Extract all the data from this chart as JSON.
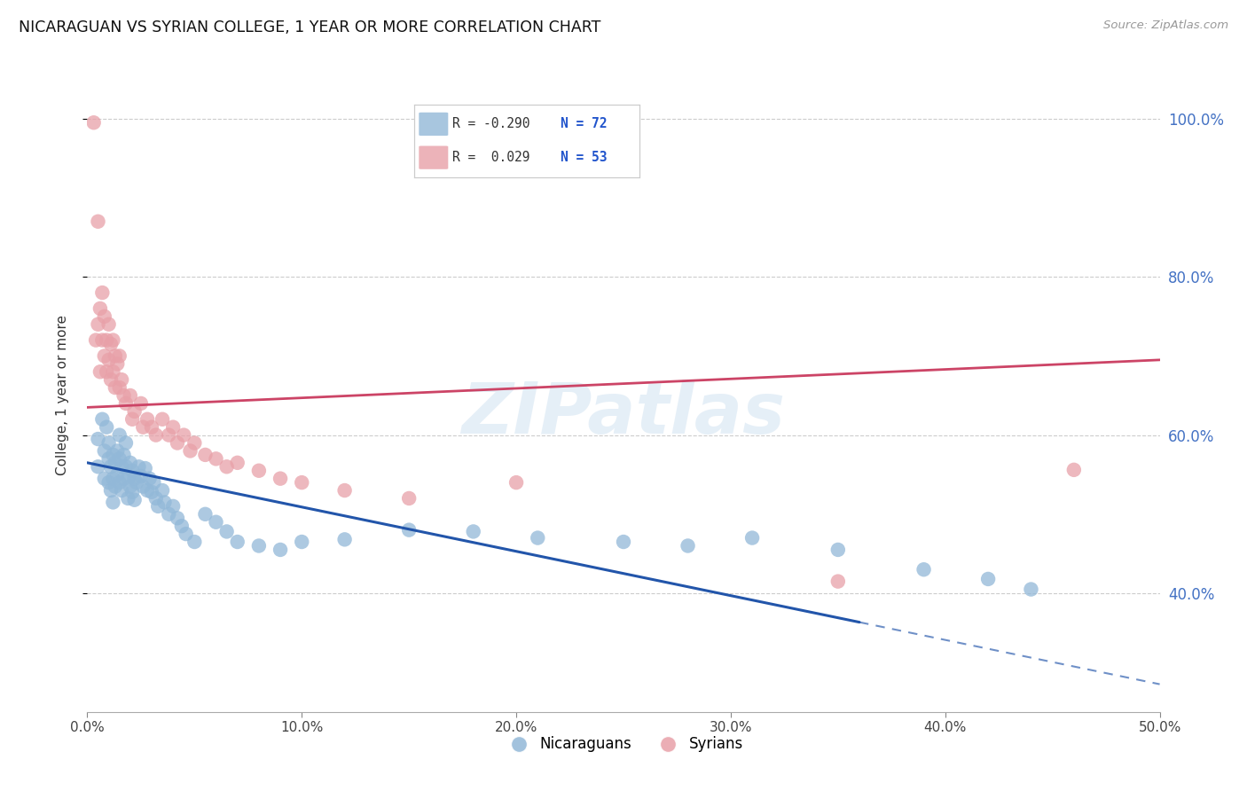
{
  "title": "NICARAGUAN VS SYRIAN COLLEGE, 1 YEAR OR MORE CORRELATION CHART",
  "source": "Source: ZipAtlas.com",
  "ylabel_left": "College, 1 year or more",
  "xlim": [
    0.0,
    0.5
  ],
  "ylim": [
    0.25,
    1.05
  ],
  "yticks_right": [
    0.4,
    0.6,
    0.8,
    1.0
  ],
  "ytick_labels_right": [
    "40.0%",
    "60.0%",
    "80.0%",
    "100.0%"
  ],
  "xticks": [
    0.0,
    0.1,
    0.2,
    0.3,
    0.4,
    0.5
  ],
  "xtick_labels": [
    "0.0%",
    "10.0%",
    "20.0%",
    "30.0%",
    "40.0%",
    "50.0%"
  ],
  "blue_label": "Nicaraguans",
  "pink_label": "Syrians",
  "legend_R_blue": "R = -0.290",
  "legend_N_blue": "N = 72",
  "legend_R_pink": "R =  0.029",
  "legend_N_pink": "N = 53",
  "blue_color": "#92b8d8",
  "pink_color": "#e8a0a8",
  "blue_line_color": "#2255aa",
  "pink_line_color": "#cc4466",
  "watermark": "ZIPatlas",
  "grid_color": "#cccccc",
  "blue_line_x0": 0.0,
  "blue_line_y0": 0.565,
  "blue_line_x1": 0.5,
  "blue_line_y1": 0.285,
  "blue_line_solid_end": 0.36,
  "pink_line_x0": 0.0,
  "pink_line_y0": 0.635,
  "pink_line_x1": 0.5,
  "pink_line_y1": 0.695,
  "blue_scatter_x": [
    0.005,
    0.005,
    0.007,
    0.008,
    0.008,
    0.009,
    0.01,
    0.01,
    0.01,
    0.011,
    0.011,
    0.012,
    0.012,
    0.012,
    0.013,
    0.013,
    0.014,
    0.014,
    0.015,
    0.015,
    0.015,
    0.016,
    0.016,
    0.017,
    0.017,
    0.018,
    0.018,
    0.019,
    0.019,
    0.02,
    0.02,
    0.021,
    0.021,
    0.022,
    0.022,
    0.023,
    0.024,
    0.025,
    0.026,
    0.027,
    0.028,
    0.029,
    0.03,
    0.031,
    0.032,
    0.033,
    0.035,
    0.036,
    0.038,
    0.04,
    0.042,
    0.044,
    0.046,
    0.05,
    0.055,
    0.06,
    0.065,
    0.07,
    0.08,
    0.09,
    0.1,
    0.12,
    0.15,
    0.18,
    0.21,
    0.25,
    0.28,
    0.31,
    0.35,
    0.39,
    0.42,
    0.44
  ],
  "blue_scatter_y": [
    0.595,
    0.56,
    0.62,
    0.58,
    0.545,
    0.61,
    0.57,
    0.54,
    0.59,
    0.56,
    0.53,
    0.575,
    0.545,
    0.515,
    0.565,
    0.535,
    0.58,
    0.55,
    0.6,
    0.57,
    0.54,
    0.56,
    0.53,
    0.575,
    0.545,
    0.59,
    0.56,
    0.545,
    0.52,
    0.565,
    0.535,
    0.555,
    0.528,
    0.545,
    0.518,
    0.54,
    0.56,
    0.548,
    0.535,
    0.558,
    0.53,
    0.545,
    0.528,
    0.54,
    0.52,
    0.51,
    0.53,
    0.515,
    0.5,
    0.51,
    0.495,
    0.485,
    0.475,
    0.465,
    0.5,
    0.49,
    0.478,
    0.465,
    0.46,
    0.455,
    0.465,
    0.468,
    0.48,
    0.478,
    0.47,
    0.465,
    0.46,
    0.47,
    0.455,
    0.43,
    0.418,
    0.405
  ],
  "pink_scatter_x": [
    0.003,
    0.004,
    0.005,
    0.005,
    0.006,
    0.006,
    0.007,
    0.007,
    0.008,
    0.008,
    0.009,
    0.009,
    0.01,
    0.01,
    0.011,
    0.011,
    0.012,
    0.012,
    0.013,
    0.013,
    0.014,
    0.015,
    0.015,
    0.016,
    0.017,
    0.018,
    0.02,
    0.021,
    0.022,
    0.025,
    0.026,
    0.028,
    0.03,
    0.032,
    0.035,
    0.038,
    0.04,
    0.042,
    0.045,
    0.048,
    0.05,
    0.055,
    0.06,
    0.065,
    0.07,
    0.08,
    0.09,
    0.1,
    0.12,
    0.15,
    0.2,
    0.35,
    0.46
  ],
  "pink_scatter_y": [
    0.995,
    0.72,
    0.74,
    0.87,
    0.76,
    0.68,
    0.78,
    0.72,
    0.75,
    0.7,
    0.72,
    0.68,
    0.74,
    0.695,
    0.715,
    0.67,
    0.72,
    0.68,
    0.7,
    0.66,
    0.69,
    0.7,
    0.66,
    0.67,
    0.65,
    0.64,
    0.65,
    0.62,
    0.63,
    0.64,
    0.61,
    0.62,
    0.61,
    0.6,
    0.62,
    0.6,
    0.61,
    0.59,
    0.6,
    0.58,
    0.59,
    0.575,
    0.57,
    0.56,
    0.565,
    0.555,
    0.545,
    0.54,
    0.53,
    0.52,
    0.54,
    0.415,
    0.556
  ]
}
